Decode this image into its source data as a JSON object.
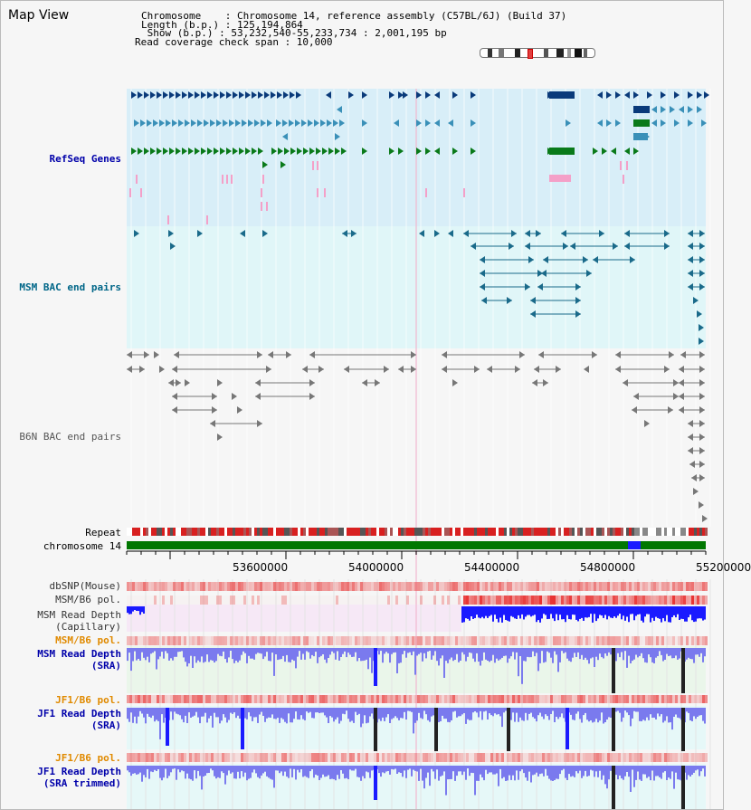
{
  "header": {
    "title": "Map View",
    "chromosome_line": "Chromosome    : Chromosome 14, reference assembly (C57BL/6J) (Build 37)",
    "length_line": "Length (b.p.) : 125,194,864",
    "show_line": " Show (b.p.) : 53,232,540-55,233,734 : 2,001,195 bp",
    "coverage_line": "Read coverage check span : 10,000"
  },
  "tracks": {
    "refseq": "RefSeq Genes",
    "msm_bac": "MSM BAC end pairs",
    "b6n_bac": "B6N BAC end pairs",
    "repeat": "Repeat",
    "chromosome": "chromosome 14",
    "dbsnp": "dbSNP(Mouse)",
    "msm_b6_pol": "MSM/B6 pol.",
    "msm_depth_cap_1": "MSM Read Depth",
    "msm_depth_cap_2": "(Capillary)",
    "msm_b6_pol_2": "MSM/B6 pol.",
    "msm_depth_sra_1": "MSM Read Depth",
    "msm_depth_sra_2": "(SRA)",
    "jf1_b6_pol": "JF1/B6 pol.",
    "jf1_depth_sra_1": "JF1 Read Depth",
    "jf1_depth_sra_2": "(SRA)",
    "jf1_b6_pol_2": "JF1/B6 pol.",
    "jf1_depth_trim_1": "JF1 Read Depth",
    "jf1_depth_trim_2": "(SRA trimmed)"
  },
  "axis": {
    "ticks": [
      "53600000",
      "54000000",
      "54400000",
      "54800000",
      "55200000"
    ]
  },
  "colors": {
    "refseq_bg": "#d8eef8",
    "msm_bg": "#e0f6f8",
    "gene_blue": "#0a3a7a",
    "gene_mid": "#3a90b8",
    "gene_green": "#0a7a1a",
    "gene_pink": "#f4a0c8",
    "bac_teal": "#1a6a8a",
    "bac_gray": "#777777",
    "label_blue": "#0000aa",
    "label_teal": "#006688",
    "label_orange": "#e08a00",
    "label_gray": "#555555",
    "depth_blue": "#1a1aff",
    "depth_light": "#7a7aee",
    "pol_red": "#e83030",
    "chrom_green": "#007700"
  }
}
